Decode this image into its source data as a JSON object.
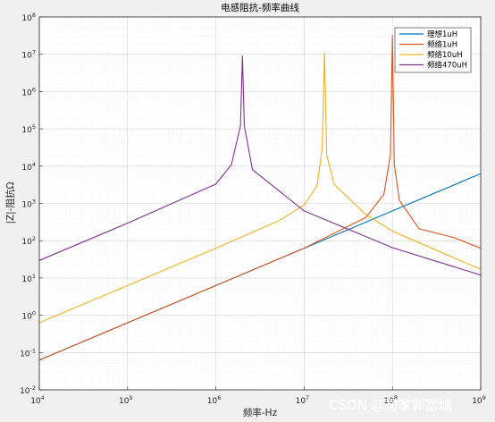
{
  "chart_data": {
    "type": "line",
    "title": "电感阻抗-频率曲线",
    "xlabel": "频率-Hz",
    "ylabel": "|Z|-阻抗Ω",
    "x_scale": "log",
    "y_scale": "log",
    "xlim": [
      10000,
      1000000000
    ],
    "ylim": [
      0.01,
      100000000
    ],
    "grid": true,
    "minor_grid": true,
    "legend_position": "top-right",
    "x_ticks": [
      {
        "base": "10",
        "exp": "4",
        "value": 10000
      },
      {
        "base": "10",
        "exp": "5",
        "value": 100000
      },
      {
        "base": "10",
        "exp": "6",
        "value": 1000000
      },
      {
        "base": "10",
        "exp": "7",
        "value": 10000000
      },
      {
        "base": "10",
        "exp": "8",
        "value": 100000000
      },
      {
        "base": "10",
        "exp": "9",
        "value": 1000000000
      }
    ],
    "y_ticks": [
      {
        "base": "10",
        "exp": "-2",
        "value": 0.01
      },
      {
        "base": "10",
        "exp": "-1",
        "value": 0.1
      },
      {
        "base": "10",
        "exp": "0",
        "value": 1
      },
      {
        "base": "10",
        "exp": "1",
        "value": 10
      },
      {
        "base": "10",
        "exp": "2",
        "value": 100
      },
      {
        "base": "10",
        "exp": "3",
        "value": 1000
      },
      {
        "base": "10",
        "exp": "4",
        "value": 10000
      },
      {
        "base": "10",
        "exp": "5",
        "value": 100000
      },
      {
        "base": "10",
        "exp": "6",
        "value": 1000000
      },
      {
        "base": "10",
        "exp": "7",
        "value": 10000000
      },
      {
        "base": "10",
        "exp": "8",
        "value": 100000000
      }
    ],
    "series": [
      {
        "name": "理想1uH",
        "color": "#0072BD",
        "x": [
          10000,
          100000,
          1000000,
          10000000,
          100000000,
          1000000000
        ],
        "y": [
          0.0628,
          0.628,
          6.28,
          62.8,
          628,
          6280
        ]
      },
      {
        "name": "频络1uH",
        "color": "#D95319",
        "x": [
          10000,
          100000,
          1000000,
          10000000,
          50000000,
          80000000,
          95000000,
          100000000,
          105000000,
          120000000,
          200000000,
          500000000,
          1000000000
        ],
        "y": [
          0.0628,
          0.628,
          6.28,
          63,
          420,
          1750,
          20000,
          32000000,
          11000,
          1200,
          210,
          120,
          63
        ]
      },
      {
        "name": "频络10uH",
        "color": "#EDB120",
        "x": [
          10000,
          100000,
          1000000,
          5000000,
          10000000,
          14000000,
          16000000,
          17000000,
          18000000,
          22000000,
          50000000,
          100000000,
          1000000000
        ],
        "y": [
          0.628,
          6.28,
          63,
          330,
          900,
          3000,
          30000,
          11000000,
          20000,
          3200,
          500,
          180,
          17
        ]
      },
      {
        "name": "频络470uH",
        "color": "#7E2F8E",
        "x": [
          10000,
          100000,
          1000000,
          1500000,
          1900000,
          2000000,
          2100000,
          2600000,
          10000000,
          100000000,
          1000000000
        ],
        "y": [
          29.5,
          295,
          3300,
          11000,
          120000,
          9000000,
          120000,
          8000,
          630,
          65,
          12
        ]
      }
    ]
  },
  "watermark": "CSDN @司家郭富城"
}
